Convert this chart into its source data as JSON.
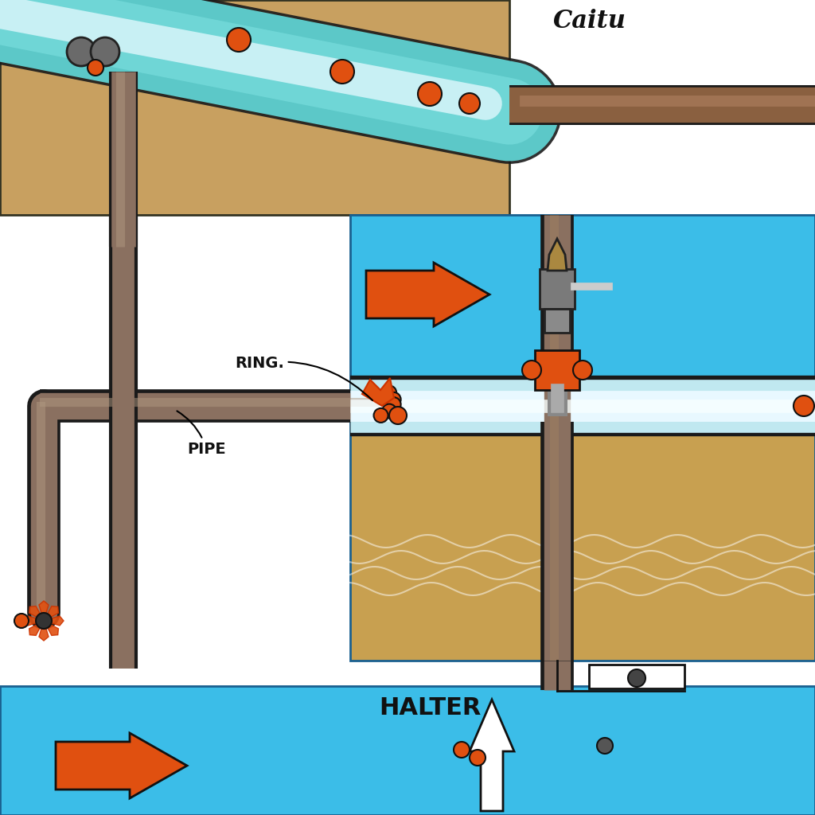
{
  "bg_color": "#ffffff",
  "blue": "#3bbde8",
  "tan": "#c8a060",
  "tan2": "#b8904a",
  "orange": "#e05010",
  "pipe_fill": "#8a7060",
  "pipe_fill2": "#6a5545",
  "pipe_outline": "#1a1a1a",
  "teal_pipe": "#6ad8d8",
  "teal_pipe2": "#4ab8c8",
  "white_pipe": "#d8f4f8",
  "gray": "#787878",
  "dark_gray": "#333333",
  "label_caitu": "Caitu",
  "label_halter": "HALTER",
  "label_ring": "RING.",
  "label_pipe": "PIPE"
}
